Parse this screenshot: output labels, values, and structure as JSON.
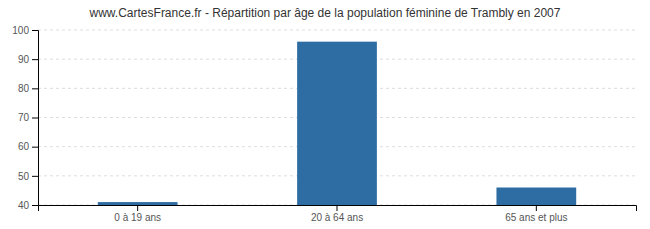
{
  "chart_data": {
    "type": "bar",
    "title": "www.CartesFrance.fr - Répartition par âge de la population féminine de Trambly en 2007",
    "categories": [
      "0 à 19 ans",
      "20 à 64 ans",
      "65 ans et plus"
    ],
    "values": [
      41,
      96,
      46
    ],
    "color": "#2e6da4",
    "ylim": [
      40,
      100
    ],
    "yticks": [
      40,
      50,
      60,
      70,
      80,
      90,
      100
    ],
    "grid": true
  }
}
